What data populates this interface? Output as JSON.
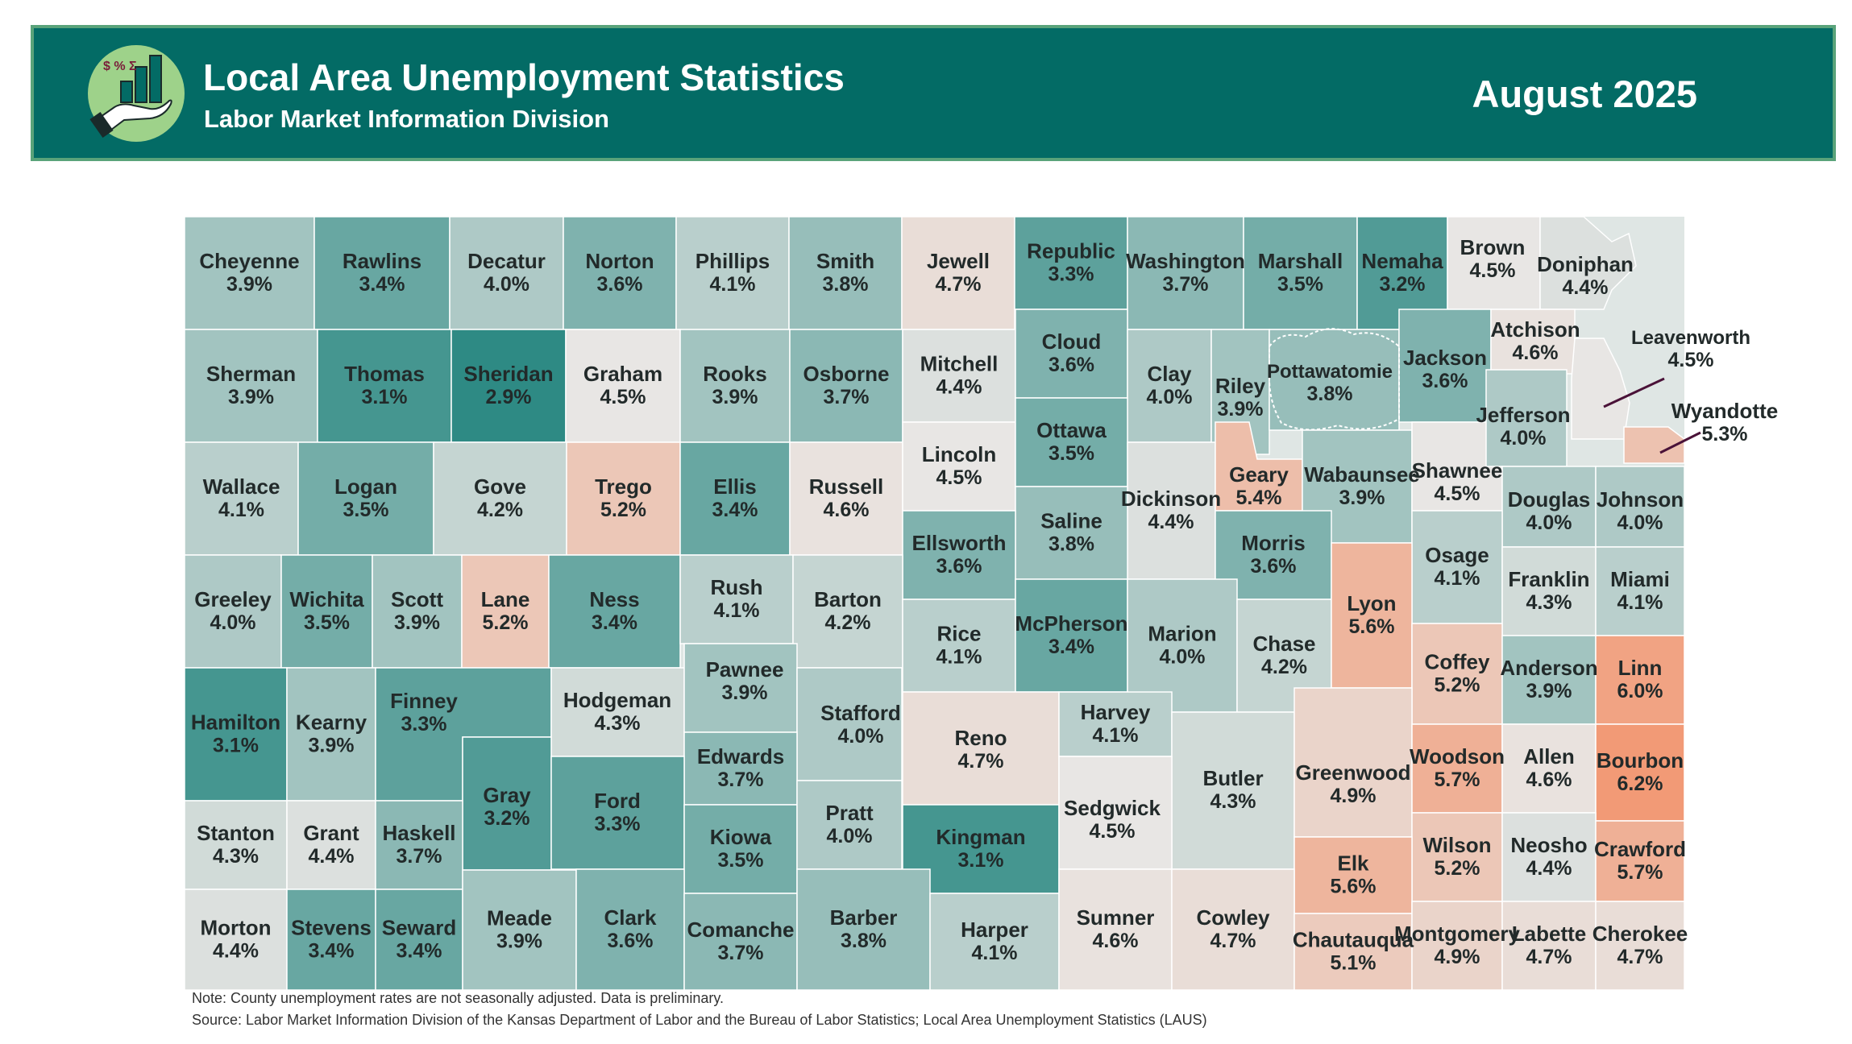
{
  "header": {
    "title": "Local Area Unemployment Statistics",
    "subtitle": "Labor Market Information Division",
    "period": "August 2025",
    "logo_icon": "finance-hand-icon",
    "logo_symbols": "$ % Σ"
  },
  "colors": {
    "banner": "#036b65",
    "scale_low": "#2e8a84",
    "scale_mid": "#e8e6e4",
    "scale_high": "#f29a76"
  },
  "counties": [
    {
      "name": "Cheyenne",
      "rate": "3.9%"
    },
    {
      "name": "Rawlins",
      "rate": "3.4%"
    },
    {
      "name": "Decatur",
      "rate": "4.0%"
    },
    {
      "name": "Norton",
      "rate": "3.6%"
    },
    {
      "name": "Phillips",
      "rate": "4.1%"
    },
    {
      "name": "Smith",
      "rate": "3.8%"
    },
    {
      "name": "Jewell",
      "rate": "4.7%"
    },
    {
      "name": "Republic",
      "rate": "3.3%"
    },
    {
      "name": "Washington",
      "rate": "3.7%"
    },
    {
      "name": "Marshall",
      "rate": "3.5%"
    },
    {
      "name": "Nemaha",
      "rate": "3.2%"
    },
    {
      "name": "Brown",
      "rate": "4.5%"
    },
    {
      "name": "Doniphan",
      "rate": "4.4%"
    },
    {
      "name": "Sherman",
      "rate": "3.9%"
    },
    {
      "name": "Thomas",
      "rate": "3.1%"
    },
    {
      "name": "Sheridan",
      "rate": "2.9%"
    },
    {
      "name": "Graham",
      "rate": "4.5%"
    },
    {
      "name": "Rooks",
      "rate": "3.9%"
    },
    {
      "name": "Osborne",
      "rate": "3.7%"
    },
    {
      "name": "Mitchell",
      "rate": "4.4%"
    },
    {
      "name": "Cloud",
      "rate": "3.6%"
    },
    {
      "name": "Clay",
      "rate": "4.0%"
    },
    {
      "name": "Riley",
      "rate": "3.9%"
    },
    {
      "name": "Pottawatomie",
      "rate": "3.8%"
    },
    {
      "name": "Jackson",
      "rate": "3.6%"
    },
    {
      "name": "Atchison",
      "rate": "4.6%"
    },
    {
      "name": "Leavenworth",
      "rate": "4.5%"
    },
    {
      "name": "Wallace",
      "rate": "4.1%"
    },
    {
      "name": "Logan",
      "rate": "3.5%"
    },
    {
      "name": "Gove",
      "rate": "4.2%"
    },
    {
      "name": "Trego",
      "rate": "5.2%"
    },
    {
      "name": "Ellis",
      "rate": "3.4%"
    },
    {
      "name": "Russell",
      "rate": "4.6%"
    },
    {
      "name": "Lincoln",
      "rate": "4.5%"
    },
    {
      "name": "Ottawa",
      "rate": "3.5%"
    },
    {
      "name": "Dickinson",
      "rate": "4.4%"
    },
    {
      "name": "Geary",
      "rate": "5.4%"
    },
    {
      "name": "Wabaunsee",
      "rate": "3.9%"
    },
    {
      "name": "Shawnee",
      "rate": "4.5%"
    },
    {
      "name": "Jefferson",
      "rate": "4.0%"
    },
    {
      "name": "Wyandotte",
      "rate": "5.3%"
    },
    {
      "name": "Douglas",
      "rate": "4.0%"
    },
    {
      "name": "Johnson",
      "rate": "4.0%"
    },
    {
      "name": "Saline",
      "rate": "3.8%"
    },
    {
      "name": "Ellsworth",
      "rate": "3.6%"
    },
    {
      "name": "Morris",
      "rate": "3.6%"
    },
    {
      "name": "Osage",
      "rate": "4.1%"
    },
    {
      "name": "Greeley",
      "rate": "4.0%"
    },
    {
      "name": "Wichita",
      "rate": "3.5%"
    },
    {
      "name": "Scott",
      "rate": "3.9%"
    },
    {
      "name": "Lane",
      "rate": "5.2%"
    },
    {
      "name": "Ness",
      "rate": "3.4%"
    },
    {
      "name": "Rush",
      "rate": "4.1%"
    },
    {
      "name": "Barton",
      "rate": "4.2%"
    },
    {
      "name": "Rice",
      "rate": "4.1%"
    },
    {
      "name": "McPherson",
      "rate": "3.4%"
    },
    {
      "name": "Marion",
      "rate": "4.0%"
    },
    {
      "name": "Chase",
      "rate": "4.2%"
    },
    {
      "name": "Lyon",
      "rate": "5.6%"
    },
    {
      "name": "Franklin",
      "rate": "4.3%"
    },
    {
      "name": "Miami",
      "rate": "4.1%"
    },
    {
      "name": "Hamilton",
      "rate": "3.1%"
    },
    {
      "name": "Kearny",
      "rate": "3.9%"
    },
    {
      "name": "Finney",
      "rate": "3.3%"
    },
    {
      "name": "Hodgeman",
      "rate": "4.3%"
    },
    {
      "name": "Pawnee",
      "rate": "3.9%"
    },
    {
      "name": "Stafford",
      "rate": "4.0%"
    },
    {
      "name": "Reno",
      "rate": "4.7%"
    },
    {
      "name": "Harvey",
      "rate": "4.1%"
    },
    {
      "name": "Coffey",
      "rate": "5.2%"
    },
    {
      "name": "Anderson",
      "rate": "3.9%"
    },
    {
      "name": "Linn",
      "rate": "6.0%"
    },
    {
      "name": "Edwards",
      "rate": "3.7%"
    },
    {
      "name": "Gray",
      "rate": "3.2%"
    },
    {
      "name": "Ford",
      "rate": "3.3%"
    },
    {
      "name": "Butler",
      "rate": "4.3%"
    },
    {
      "name": "Greenwood",
      "rate": "4.9%"
    },
    {
      "name": "Woodson",
      "rate": "5.7%"
    },
    {
      "name": "Allen",
      "rate": "4.6%"
    },
    {
      "name": "Bourbon",
      "rate": "6.2%"
    },
    {
      "name": "Stanton",
      "rate": "4.3%"
    },
    {
      "name": "Grant",
      "rate": "4.4%"
    },
    {
      "name": "Haskell",
      "rate": "3.7%"
    },
    {
      "name": "Kiowa",
      "rate": "3.5%"
    },
    {
      "name": "Pratt",
      "rate": "4.0%"
    },
    {
      "name": "Kingman",
      "rate": "3.1%"
    },
    {
      "name": "Sedgwick",
      "rate": "4.5%"
    },
    {
      "name": "Wilson",
      "rate": "5.2%"
    },
    {
      "name": "Neosho",
      "rate": "4.4%"
    },
    {
      "name": "Crawford",
      "rate": "5.7%"
    },
    {
      "name": "Elk",
      "rate": "5.6%"
    },
    {
      "name": "Morton",
      "rate": "4.4%"
    },
    {
      "name": "Stevens",
      "rate": "3.4%"
    },
    {
      "name": "Seward",
      "rate": "3.4%"
    },
    {
      "name": "Meade",
      "rate": "3.9%"
    },
    {
      "name": "Clark",
      "rate": "3.6%"
    },
    {
      "name": "Comanche",
      "rate": "3.7%"
    },
    {
      "name": "Barber",
      "rate": "3.8%"
    },
    {
      "name": "Harper",
      "rate": "4.1%"
    },
    {
      "name": "Sumner",
      "rate": "4.6%"
    },
    {
      "name": "Cowley",
      "rate": "4.7%"
    },
    {
      "name": "Chautauqua",
      "rate": "5.1%"
    },
    {
      "name": "Montgomery",
      "rate": "4.9%"
    },
    {
      "name": "Labette",
      "rate": "4.7%"
    },
    {
      "name": "Cherokee",
      "rate": "4.7%"
    }
  ],
  "notes": {
    "note": "Note: County unemployment rates are not seasonally adjusted. Data is preliminary.",
    "source": "Source: Labor Market Information Division of the Kansas Department of Labor and the Bureau of Labor Statistics; Local Area Unemployment Statistics (LAUS)"
  }
}
